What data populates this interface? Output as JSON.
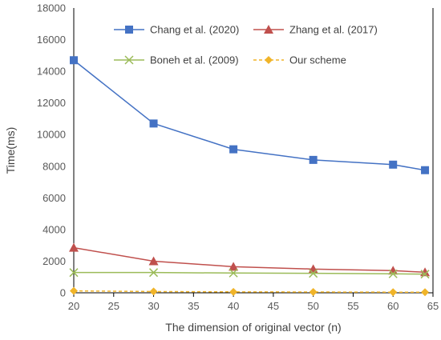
{
  "chart_data": {
    "type": "line",
    "x": [
      20,
      30,
      40,
      50,
      60,
      64
    ],
    "series": [
      {
        "name": "Chang et al. (2020)",
        "values": [
          14700,
          10700,
          9070,
          8400,
          8100,
          7750
        ],
        "color": "#4472C4",
        "marker": "square",
        "dashed": false
      },
      {
        "name": "Zhang et al. (2017)",
        "values": [
          2850,
          2000,
          1650,
          1500,
          1400,
          1300
        ],
        "color": "#C0504D",
        "marker": "triangle",
        "dashed": false
      },
      {
        "name": "Boneh et al. (2009)",
        "values": [
          1280,
          1280,
          1250,
          1230,
          1200,
          1180
        ],
        "color": "#9BBB59",
        "marker": "x",
        "dashed": false
      },
      {
        "name": "Our scheme",
        "values": [
          120,
          80,
          60,
          50,
          40,
          35
        ],
        "color": "#F0B429",
        "marker": "diamond",
        "dashed": true
      }
    ],
    "xlabel": "The dimension of original vector (n)",
    "ylabel": "Time(ms)",
    "xlim": [
      20,
      65
    ],
    "ylim": [
      0,
      18000
    ],
    "xticks": [
      "20",
      "25",
      "30",
      "35",
      "40",
      "45",
      "50",
      "55",
      "60",
      "65"
    ],
    "yticks": [
      "0",
      "2000",
      "4000",
      "6000",
      "8000",
      "10000",
      "12000",
      "14000",
      "16000",
      "18000"
    ],
    "grid": false,
    "legend_position": "top-right"
  }
}
